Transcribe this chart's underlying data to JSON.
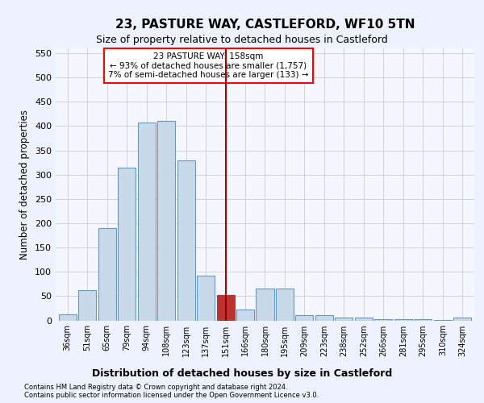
{
  "title": "23, PASTURE WAY, CASTLEFORD, WF10 5TN",
  "subtitle": "Size of property relative to detached houses in Castleford",
  "xlabel_bottom": "Distribution of detached houses by size in Castleford",
  "ylabel": "Number of detached properties",
  "categories": [
    "36sqm",
    "51sqm",
    "65sqm",
    "79sqm",
    "94sqm",
    "108sqm",
    "123sqm",
    "137sqm",
    "151sqm",
    "166sqm",
    "180sqm",
    "195sqm",
    "209sqm",
    "223sqm",
    "238sqm",
    "252sqm",
    "266sqm",
    "281sqm",
    "295sqm",
    "310sqm",
    "324sqm"
  ],
  "values": [
    12,
    62,
    190,
    315,
    408,
    410,
    330,
    92,
    53,
    22,
    65,
    65,
    11,
    11,
    6,
    6,
    3,
    3,
    3,
    1,
    5
  ],
  "bar_color": "#c8daea",
  "bar_edge_color": "#6699bb",
  "highlight_bar_index": 8,
  "highlight_bar_color": "#bb3333",
  "highlight_bar_edge_color": "#bb3333",
  "vline_x_index": 8,
  "vline_color": "#990000",
  "annotation_box_text": "23 PASTURE WAY: 158sqm\n← 93% of detached houses are smaller (1,757)\n7% of semi-detached houses are larger (133) →",
  "ylim": [
    0,
    560
  ],
  "yticks": [
    0,
    50,
    100,
    150,
    200,
    250,
    300,
    350,
    400,
    450,
    500,
    550
  ],
  "footnote1": "Contains HM Land Registry data © Crown copyright and database right 2024.",
  "footnote2": "Contains public sector information licensed under the Open Government Licence v3.0.",
  "bg_color": "#eef2ff",
  "plot_bg_color": "#f5f7ff",
  "title_fontsize": 11,
  "subtitle_fontsize": 9,
  "tick_fontsize": 7,
  "ylabel_fontsize": 8.5
}
